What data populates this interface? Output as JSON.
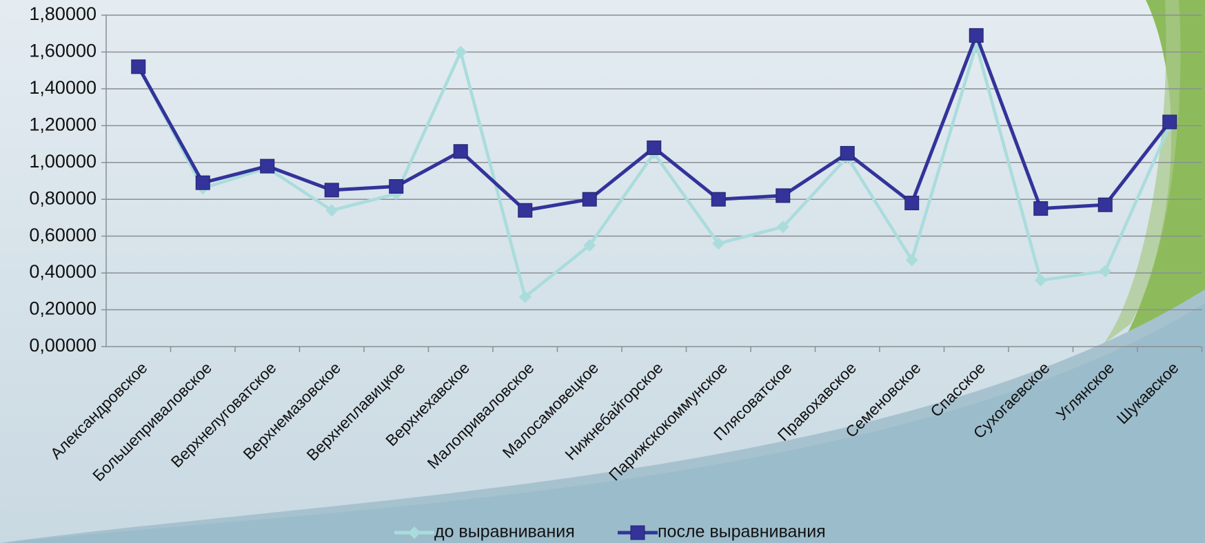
{
  "chart_data": {
    "type": "line",
    "categories": [
      "Александровское",
      "Большеприваловское",
      "Верхнелуговатское",
      "Верхнемазовское",
      "Верхнеплавицкое",
      "Верхнехавское",
      "Малоприваловское",
      "Малосамовецкое",
      "Нижнебайгорское",
      "Парижскокоммунское",
      "Плясоватское",
      "Правохавское",
      "Семеновское",
      "Спасское",
      "Сухогаевское",
      "Углянское",
      "Шукавское"
    ],
    "series": [
      {
        "name": "до выравнивания",
        "color": "#aadcdc",
        "marker": "diamond",
        "values": [
          1.52,
          0.86,
          0.97,
          0.74,
          0.83,
          1.6,
          0.27,
          0.55,
          1.05,
          0.56,
          0.65,
          1.03,
          0.47,
          1.64,
          0.36,
          0.41,
          1.2
        ]
      },
      {
        "name": "после выравнивания",
        "color": "#33339a",
        "marker": "square",
        "values": [
          1.52,
          0.89,
          0.98,
          0.85,
          0.87,
          1.06,
          0.74,
          0.8,
          1.08,
          0.8,
          0.82,
          1.05,
          0.78,
          1.69,
          0.75,
          0.77,
          1.22
        ]
      }
    ],
    "ylim": [
      0,
      1.8
    ],
    "yticks": [
      {
        "value": 0,
        "label": "0,00000"
      },
      {
        "value": 0.2,
        "label": "0,20000"
      },
      {
        "value": 0.4,
        "label": "0,40000"
      },
      {
        "value": 0.6,
        "label": "0,60000"
      },
      {
        "value": 0.8,
        "label": "0,80000"
      },
      {
        "value": 1.0,
        "label": "1,00000"
      },
      {
        "value": 1.2,
        "label": "1,20000"
      },
      {
        "value": 1.4,
        "label": "1,40000"
      },
      {
        "value": 1.6,
        "label": "1,60000"
      },
      {
        "value": 1.8,
        "label": "1,80000"
      }
    ],
    "grid": true,
    "legend": "bottom"
  }
}
